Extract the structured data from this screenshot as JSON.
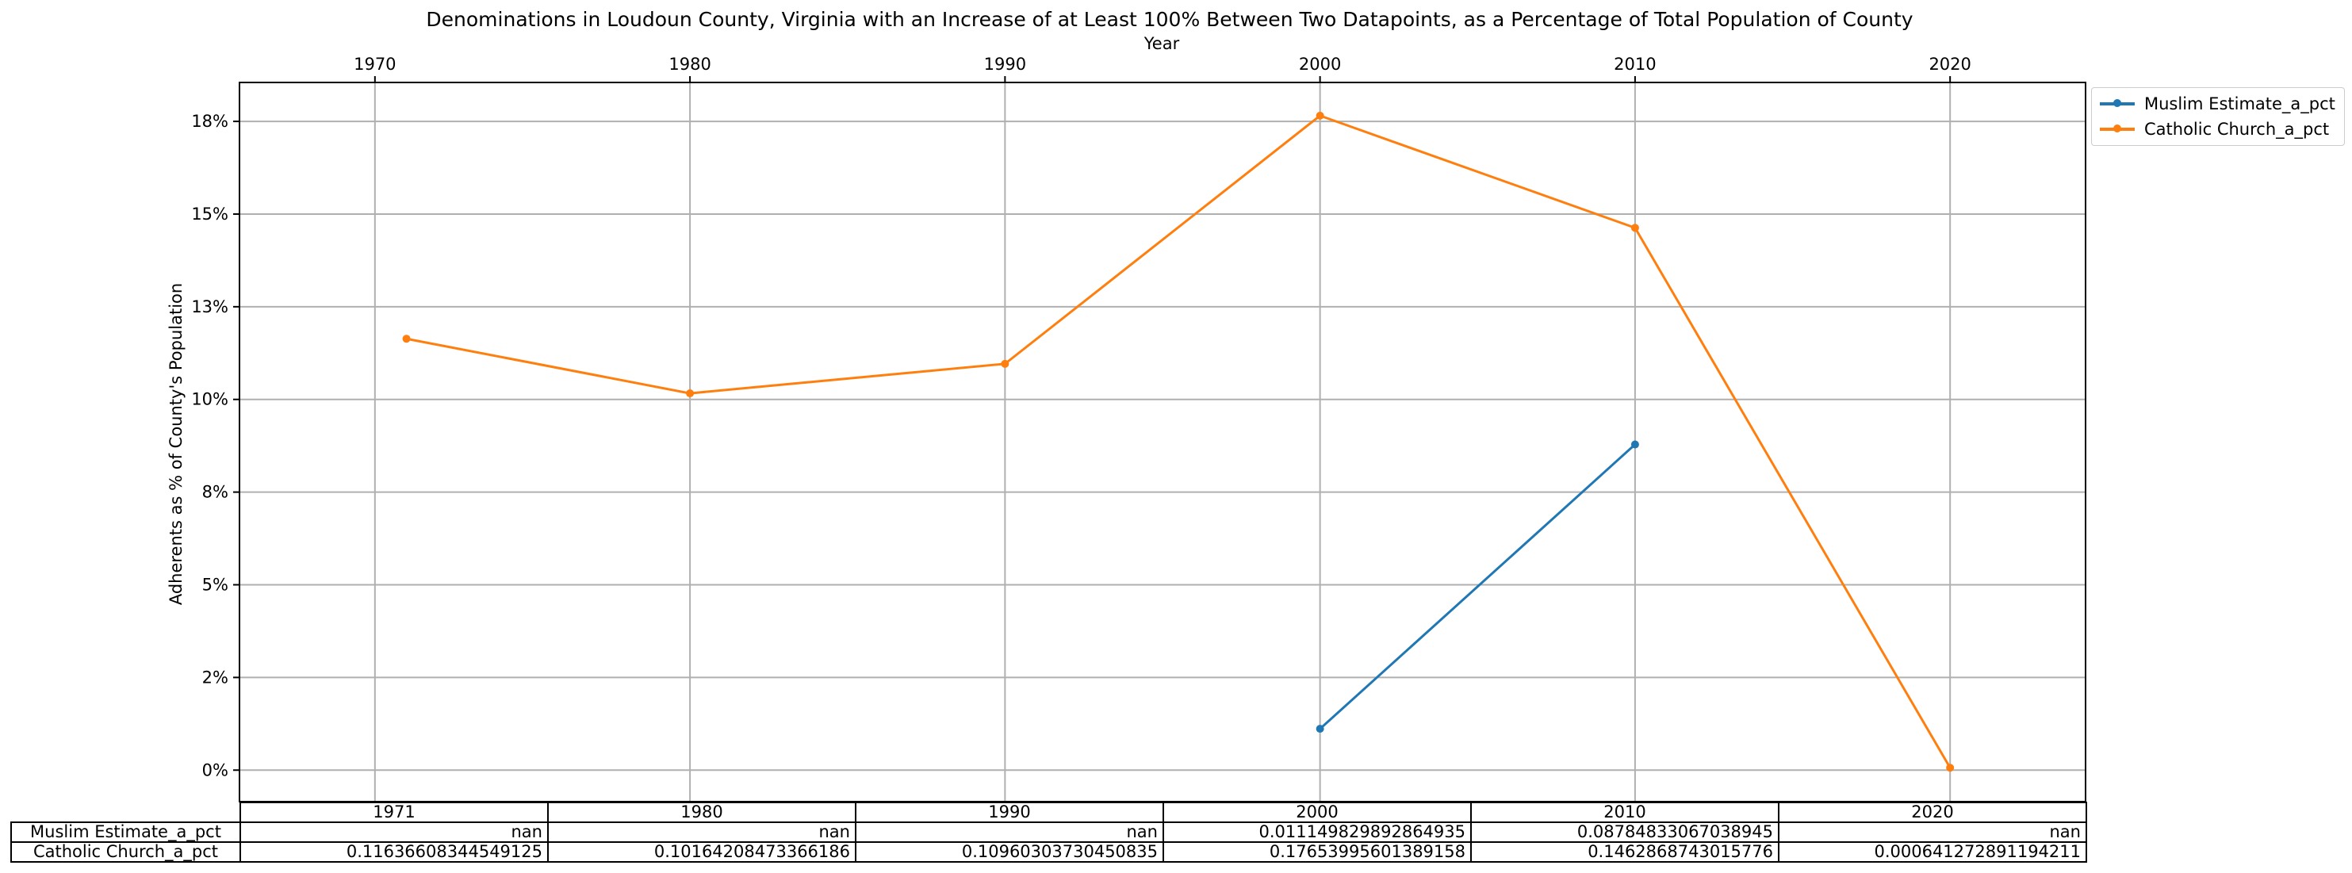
{
  "chart_data": {
    "type": "line",
    "title": "Denominations in Loudoun County, Virginia with an Increase of at Least 100% Between Two Datapoints, as a Percentage of Total Population of County",
    "xlabel": "Year",
    "ylabel": "Adherents as % of County's Population",
    "xlim": [
      1965.7,
      2024.3
    ],
    "ylim": [
      -0.0085,
      0.1855
    ],
    "x_ticks": [
      1970,
      1980,
      1990,
      2000,
      2010,
      2020
    ],
    "y_ticks": [
      0,
      0.025,
      0.05,
      0.075,
      0.1,
      0.125,
      0.15,
      0.175
    ],
    "y_tick_labels": [
      "0%",
      "2%",
      "5%",
      "8%",
      "10%",
      "13%",
      "15%",
      "18%"
    ],
    "grid": true,
    "legend_position": "upper-right-outside",
    "series": [
      {
        "name": "Muslim Estimate_a_pct",
        "color": "#1f77b4",
        "x": [
          1971,
          1980,
          1990,
          2000,
          2010,
          2020
        ],
        "values": [
          null,
          null,
          null,
          0.011149829892864935,
          0.08784833067038945,
          null
        ]
      },
      {
        "name": "Catholic Church_a_pct",
        "color": "#ff7f0e",
        "x": [
          1971,
          1980,
          1990,
          2000,
          2010,
          2020
        ],
        "values": [
          0.11636608344549125,
          0.10164208473366186,
          0.10960303730450835,
          0.17653995601389158,
          0.1462868743015776,
          0.000641272891194211
        ]
      }
    ],
    "table": {
      "columns": [
        "1971",
        "1980",
        "1990",
        "2000",
        "2010",
        "2020"
      ],
      "rows": [
        {
          "label": "Muslim Estimate_a_pct",
          "cells": [
            "nan",
            "nan",
            "nan",
            "0.011149829892864935",
            "0.08784833067038945",
            "nan"
          ]
        },
        {
          "label": "Catholic Church_a_pct",
          "cells": [
            "0.11636608344549125",
            "0.10164208473366186",
            "0.10960303730450835",
            "0.17653995601389158",
            "0.1462868743015776",
            "0.000641272891194211"
          ]
        }
      ]
    }
  }
}
